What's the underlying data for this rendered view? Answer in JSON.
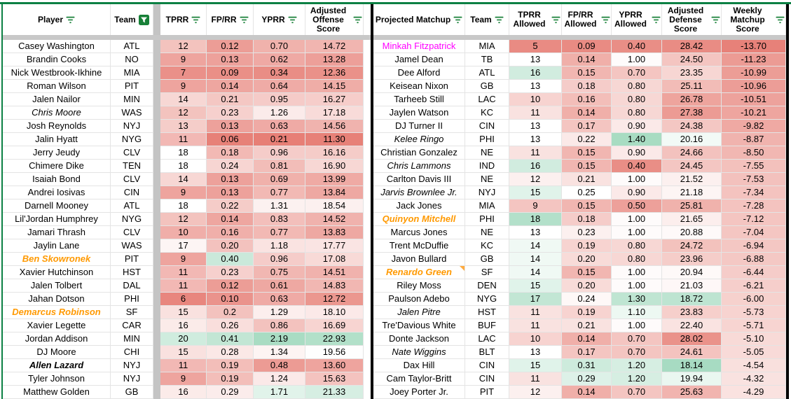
{
  "colors": {
    "range_border_green": "#0b8043",
    "filter_icon_green": "#188038",
    "frozen_divider_gray": "#c8c8c8",
    "spacer_column_gray": "#c4c4c4",
    "gridline": "#e4e4e4",
    "table_border_black": "#000000",
    "scale_red": "#e67c73",
    "scale_white": "#ffffff",
    "scale_green": "#57bb8a",
    "name_orange": "#ff9900",
    "name_magenta": "#ff00ff",
    "note_indicator_orange": "#ffab40"
  },
  "left_table": {
    "headers": {
      "player": "Player",
      "team": "Team",
      "tprr": "TPRR",
      "fprr": "FP/RR",
      "yprr": "YPRR",
      "off": "Adjusted Offense Score"
    },
    "columns": [
      {
        "key": "player",
        "type": "name",
        "w": 154,
        "filter": "lines"
      },
      {
        "key": "team",
        "type": "text",
        "w": 61,
        "filter": "active"
      },
      {
        "type": "spacer",
        "w": 10
      },
      {
        "key": "tprr",
        "type": "num",
        "w": 66,
        "scale": "tprr",
        "filter": "lines"
      },
      {
        "key": "fprr",
        "type": "num",
        "w": 67,
        "scale": "fprr",
        "filter": "lines"
      },
      {
        "key": "yprr",
        "type": "num",
        "w": 74,
        "scale": "yprr",
        "filter": "lines"
      },
      {
        "key": "off",
        "type": "num",
        "w": 83,
        "scale": "off",
        "filter": "lines"
      }
    ],
    "scales": {
      "tprr": {
        "red": 5,
        "white": 18,
        "green": 25
      },
      "fprr": {
        "red": 0.05,
        "white": 0.33,
        "green": 0.55
      },
      "yprr": {
        "red": 0.18,
        "white": 1.45,
        "green": 2.9
      },
      "off": {
        "red": 11,
        "white": 19.5,
        "green": 27
      }
    },
    "rows": [
      {
        "player": "Casey Washington",
        "team": "ATL",
        "tprr": "12",
        "fprr": "0.12",
        "yprr": "0.70",
        "off": "14.72",
        "style": "normal"
      },
      {
        "player": "Brandin Cooks",
        "team": "NO",
        "tprr": "9",
        "fprr": "0.13",
        "yprr": "0.62",
        "off": "13.28",
        "style": "normal"
      },
      {
        "player": "Nick Westbrook-Ikhine",
        "team": "MIA",
        "tprr": "7",
        "fprr": "0.09",
        "yprr": "0.34",
        "off": "12.36",
        "style": "normal"
      },
      {
        "player": "Roman Wilson",
        "team": "PIT",
        "tprr": "9",
        "fprr": "0.14",
        "yprr": "0.64",
        "off": "14.15",
        "style": "normal"
      },
      {
        "player": "Jalen Nailor",
        "team": "MIN",
        "tprr": "14",
        "fprr": "0.21",
        "yprr": "0.95",
        "off": "16.27",
        "style": "normal"
      },
      {
        "player": "Chris Moore",
        "team": "WAS",
        "tprr": "12",
        "fprr": "0.23",
        "yprr": "1.26",
        "off": "17.18",
        "style": "italic"
      },
      {
        "player": "Josh Reynolds",
        "team": "NYJ",
        "tprr": "13",
        "fprr": "0.13",
        "yprr": "0.63",
        "off": "14.56",
        "style": "normal"
      },
      {
        "player": "Jalin Hyatt",
        "team": "NYG",
        "tprr": "11",
        "fprr": "0.06",
        "yprr": "0.21",
        "off": "11.30",
        "style": "normal"
      },
      {
        "player": "Jerry Jeudy",
        "team": "CLV",
        "tprr": "18",
        "fprr": "0.18",
        "yprr": "0.96",
        "off": "16.16",
        "style": "normal"
      },
      {
        "player": "Chimere Dike",
        "team": "TEN",
        "tprr": "18",
        "fprr": "0.24",
        "yprr": "0.81",
        "off": "16.90",
        "style": "normal"
      },
      {
        "player": "Isaiah Bond",
        "team": "CLV",
        "tprr": "14",
        "fprr": "0.13",
        "yprr": "0.69",
        "off": "13.99",
        "style": "normal"
      },
      {
        "player": "Andrei Iosivas",
        "team": "CIN",
        "tprr": "9",
        "fprr": "0.13",
        "yprr": "0.77",
        "off": "13.84",
        "style": "normal"
      },
      {
        "player": "Darnell Mooney",
        "team": "ATL",
        "tprr": "18",
        "fprr": "0.22",
        "yprr": "1.31",
        "off": "18.54",
        "style": "normal"
      },
      {
        "player": "Lil'Jordan Humphrey",
        "team": "NYG",
        "tprr": "12",
        "fprr": "0.14",
        "yprr": "0.83",
        "off": "14.52",
        "style": "normal"
      },
      {
        "player": "Jamari Thrash",
        "team": "CLV",
        "tprr": "10",
        "fprr": "0.16",
        "yprr": "0.77",
        "off": "13.83",
        "style": "normal"
      },
      {
        "player": "Jaylin Lane",
        "team": "WAS",
        "tprr": "17",
        "fprr": "0.20",
        "yprr": "1.18",
        "off": "17.77",
        "style": "normal"
      },
      {
        "player": "Ben Skowronek",
        "team": "PIT",
        "tprr": "9",
        "fprr": "0.40",
        "yprr": "0.96",
        "off": "17.08",
        "style": "orange"
      },
      {
        "player": "Xavier Hutchinson",
        "team": "HST",
        "tprr": "11",
        "fprr": "0.23",
        "yprr": "0.75",
        "off": "14.51",
        "style": "normal"
      },
      {
        "player": "Jalen Tolbert",
        "team": "DAL",
        "tprr": "11",
        "fprr": "0.12",
        "yprr": "0.61",
        "off": "14.83",
        "style": "normal"
      },
      {
        "player": "Jahan Dotson",
        "team": "PHI",
        "tprr": "6",
        "fprr": "0.10",
        "yprr": "0.63",
        "off": "12.72",
        "style": "normal"
      },
      {
        "player": "Demarcus Robinson",
        "team": "SF",
        "tprr": "15",
        "fprr": "0.2",
        "yprr": "1.29",
        "off": "18.10",
        "style": "orange"
      },
      {
        "player": "Xavier Legette",
        "team": "CAR",
        "tprr": "16",
        "fprr": "0.26",
        "yprr": "0.86",
        "off": "16.69",
        "style": "normal"
      },
      {
        "player": "Jordan Addison",
        "team": "MIN",
        "tprr": "20",
        "fprr": "0.41",
        "yprr": "2.19",
        "off": "22.93",
        "style": "normal"
      },
      {
        "player": "DJ Moore",
        "team": "CHI",
        "tprr": "15",
        "fprr": "0.28",
        "yprr": "1.34",
        "off": "19.56",
        "style": "normal"
      },
      {
        "player": "Allen Lazard",
        "team": "NYJ",
        "tprr": "11",
        "fprr": "0.19",
        "yprr": "0.48",
        "off": "13.60",
        "style": "bolditalic"
      },
      {
        "player": "Tyler Johnson",
        "team": "NYJ",
        "tprr": "9",
        "fprr": "0.19",
        "yprr": "1.24",
        "off": "15.63",
        "style": "normal"
      },
      {
        "player": "Matthew Golden",
        "team": "GB",
        "tprr": "16",
        "fprr": "0.29",
        "yprr": "1.71",
        "off": "21.33",
        "style": "normal"
      }
    ]
  },
  "right_table": {
    "headers": {
      "player": "Projected Matchup",
      "team": "Team",
      "tprr": "TPRR Allowed",
      "fprr": "FP/RR Allowed",
      "yprr": "YPRR Allowed",
      "def": "Adjusted Defense Score",
      "wk": "Weekly Matchup Score"
    },
    "columns": [
      {
        "key": "player",
        "type": "name",
        "w": 131,
        "filter": "lines"
      },
      {
        "key": "team",
        "type": "text",
        "w": 63,
        "filter": "lines"
      },
      {
        "key": "tprr",
        "type": "num",
        "w": 75,
        "scale": "tprr",
        "filter": "lines"
      },
      {
        "key": "fprr",
        "type": "num",
        "w": 71,
        "scale": "fprr",
        "filter": "lines"
      },
      {
        "key": "yprr",
        "type": "num",
        "w": 72,
        "scale": "yprr",
        "filter": "lines"
      },
      {
        "key": "def",
        "type": "num",
        "w": 85,
        "scale": "def",
        "filter": "lines"
      },
      {
        "key": "wk",
        "type": "num",
        "w": 92,
        "scale": "wk",
        "filter": "lines"
      }
    ],
    "scales": {
      "tprr": {
        "red": 4,
        "white": 13,
        "green": 24
      },
      "fprr": {
        "red": 0.07,
        "white": 0.25,
        "green": 0.45
      },
      "yprr": {
        "red": 0.3,
        "white": 1.02,
        "green": 1.75
      },
      "def": {
        "red": 29.5,
        "white": 20.5,
        "green": 16
      },
      "wk": {
        "red": -14.2,
        "white": -1.5,
        "green": 2
      }
    },
    "rows": [
      {
        "player": "Minkah Fitzpatrick",
        "team": "MIA",
        "tprr": "5",
        "fprr": "0.09",
        "yprr": "0.40",
        "def": "28.42",
        "wk": "-13.70",
        "style": "magenta"
      },
      {
        "player": "Jamel Dean",
        "team": "TB",
        "tprr": "13",
        "fprr": "0.14",
        "yprr": "1.00",
        "def": "24.50",
        "wk": "-11.23",
        "style": "normal"
      },
      {
        "player": "Dee Alford",
        "team": "ATL",
        "tprr": "16",
        "fprr": "0.15",
        "yprr": "0.70",
        "def": "23.35",
        "wk": "-10.99",
        "style": "normal"
      },
      {
        "player": "Keisean Nixon",
        "team": "GB",
        "tprr": "13",
        "fprr": "0.18",
        "yprr": "0.80",
        "def": "25.11",
        "wk": "-10.96",
        "style": "normal"
      },
      {
        "player": "Tarheeb Still",
        "team": "LAC",
        "tprr": "10",
        "fprr": "0.16",
        "yprr": "0.80",
        "def": "26.78",
        "wk": "-10.51",
        "style": "normal"
      },
      {
        "player": "Jaylen Watson",
        "team": "KC",
        "tprr": "11",
        "fprr": "0.14",
        "yprr": "0.80",
        "def": "27.38",
        "wk": "-10.21",
        "style": "normal"
      },
      {
        "player": "DJ Turner II",
        "team": "CIN",
        "tprr": "13",
        "fprr": "0.17",
        "yprr": "0.90",
        "def": "24.38",
        "wk": "-9.82",
        "style": "normal"
      },
      {
        "player": "Kelee Ringo",
        "team": "PHI",
        "tprr": "13",
        "fprr": "0.22",
        "yprr": "1.40",
        "def": "20.16",
        "wk": "-8.87",
        "style": "italic"
      },
      {
        "player": "Christian Gonzalez",
        "team": "NE",
        "tprr": "11",
        "fprr": "0.15",
        "yprr": "0.90",
        "def": "24.66",
        "wk": "-8.50",
        "style": "normal"
      },
      {
        "player": "Chris Lammons",
        "team": "IND",
        "tprr": "16",
        "fprr": "0.15",
        "yprr": "0.40",
        "def": "24.45",
        "wk": "-7.55",
        "style": "italic"
      },
      {
        "player": "Carlton Davis III",
        "team": "NE",
        "tprr": "12",
        "fprr": "0.21",
        "yprr": "1.00",
        "def": "21.52",
        "wk": "-7.53",
        "style": "normal"
      },
      {
        "player": "Jarvis Brownlee Jr.",
        "team": "NYJ",
        "tprr": "15",
        "fprr": "0.25",
        "yprr": "0.90",
        "def": "21.18",
        "wk": "-7.34",
        "style": "italic"
      },
      {
        "player": "Jack Jones",
        "team": "MIA",
        "tprr": "9",
        "fprr": "0.15",
        "yprr": "0.50",
        "def": "25.81",
        "wk": "-7.28",
        "style": "normal"
      },
      {
        "player": "Quinyon Mitchell",
        "team": "PHI",
        "tprr": "18",
        "fprr": "0.18",
        "yprr": "1.00",
        "def": "21.65",
        "wk": "-7.12",
        "style": "orange"
      },
      {
        "player": "Marcus Jones",
        "team": "NE",
        "tprr": "13",
        "fprr": "0.23",
        "yprr": "1.00",
        "def": "20.88",
        "wk": "-7.04",
        "style": "normal"
      },
      {
        "player": "Trent McDuffie",
        "team": "KC",
        "tprr": "14",
        "fprr": "0.19",
        "yprr": "0.80",
        "def": "24.72",
        "wk": "-6.94",
        "style": "normal"
      },
      {
        "player": "Javon Bullard",
        "team": "GB",
        "tprr": "14",
        "fprr": "0.20",
        "yprr": "0.80",
        "def": "23.96",
        "wk": "-6.88",
        "style": "normal"
      },
      {
        "player": "Renardo Green",
        "team": "SF",
        "tprr": "14",
        "fprr": "0.15",
        "yprr": "1.00",
        "def": "20.94",
        "wk": "-6.44",
        "style": "orange",
        "note": true
      },
      {
        "player": "Riley Moss",
        "team": "DEN",
        "tprr": "15",
        "fprr": "0.20",
        "yprr": "1.00",
        "def": "21.03",
        "wk": "-6.21",
        "style": "normal"
      },
      {
        "player": "Paulson Adebo",
        "team": "NYG",
        "tprr": "17",
        "fprr": "0.24",
        "yprr": "1.30",
        "def": "18.72",
        "wk": "-6.00",
        "style": "normal"
      },
      {
        "player": "Jalen Pitre",
        "team": "HST",
        "tprr": "11",
        "fprr": "0.19",
        "yprr": "1.10",
        "def": "23.83",
        "wk": "-5.73",
        "style": "italic"
      },
      {
        "player": "Tre'Davious White",
        "team": "BUF",
        "tprr": "11",
        "fprr": "0.21",
        "yprr": "1.00",
        "def": "22.40",
        "wk": "-5.71",
        "style": "normal"
      },
      {
        "player": "Donte Jackson",
        "team": "LAC",
        "tprr": "10",
        "fprr": "0.14",
        "yprr": "0.70",
        "def": "28.02",
        "wk": "-5.10",
        "style": "normal"
      },
      {
        "player": "Nate Wiggins",
        "team": "BLT",
        "tprr": "13",
        "fprr": "0.17",
        "yprr": "0.70",
        "def": "24.61",
        "wk": "-5.05",
        "style": "italic"
      },
      {
        "player": "Dax Hill",
        "team": "CIN",
        "tprr": "15",
        "fprr": "0.31",
        "yprr": "1.20",
        "def": "18.14",
        "wk": "-4.54",
        "style": "normal"
      },
      {
        "player": "Cam Taylor-Britt",
        "team": "CIN",
        "tprr": "11",
        "fprr": "0.29",
        "yprr": "1.20",
        "def": "19.94",
        "wk": "-4.32",
        "style": "normal"
      },
      {
        "player": "Joey Porter Jr.",
        "team": "PIT",
        "tprr": "12",
        "fprr": "0.14",
        "yprr": "0.70",
        "def": "25.63",
        "wk": "-4.29",
        "style": "normal"
      }
    ]
  }
}
